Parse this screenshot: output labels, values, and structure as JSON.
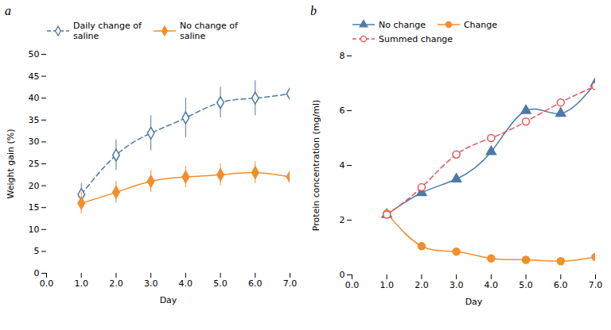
{
  "chart_data": [
    {
      "type": "line",
      "title": "a",
      "xlabel": "Day",
      "ylabel": "Weight gain (%)",
      "x": [
        1,
        2,
        3,
        4,
        5,
        6,
        7
      ],
      "xlim": [
        0,
        7
      ],
      "xticks": [
        0,
        1,
        2,
        3,
        4,
        5,
        6,
        7
      ],
      "ylim": [
        0,
        50
      ],
      "yticks": [
        0,
        5,
        10,
        15,
        20,
        25,
        30,
        35,
        40,
        45,
        50
      ],
      "series": [
        {
          "name": "Daily change of\nsaline",
          "values": [
            18,
            27,
            32,
            35.5,
            39,
            40,
            41
          ],
          "yerr": [
            2.5,
            3.5,
            4.0,
            4.5,
            3.5,
            4.0,
            4.5
          ],
          "marker": "diamond-open",
          "line_style": "dashed"
        },
        {
          "name": "No change of\nsaline",
          "values": [
            16,
            18.5,
            21,
            22,
            22.5,
            23,
            22
          ],
          "yerr": [
            2.5,
            2.5,
            2.5,
            2.5,
            2.5,
            2.5,
            3.0
          ],
          "marker": "diamond",
          "line_style": "solid"
        }
      ]
    },
    {
      "type": "line",
      "title": "b",
      "xlabel": "Day",
      "ylabel": "Protein concentration (mg/ml)",
      "x": [
        1,
        2,
        3,
        4,
        5,
        6,
        7
      ],
      "xlim": [
        0,
        7
      ],
      "xticks": [
        0,
        1,
        2,
        3,
        4,
        5,
        6,
        7
      ],
      "ylim": [
        0,
        8
      ],
      "yticks": [
        0,
        2,
        4,
        6,
        8
      ],
      "series": [
        {
          "name": "No change",
          "values": [
            2.2,
            3.0,
            3.5,
            4.5,
            6.0,
            5.9,
            7.0
          ],
          "marker": "triangle",
          "line_style": "solid"
        },
        {
          "name": "Change",
          "values": [
            2.25,
            1.05,
            0.85,
            0.6,
            0.55,
            0.5,
            0.65
          ],
          "marker": "circle",
          "line_style": "solid"
        },
        {
          "name": "Summed change",
          "values": [
            2.2,
            3.2,
            4.4,
            5.0,
            5.6,
            6.3,
            6.9
          ],
          "marker": "circle-open",
          "line_style": "dashed"
        }
      ]
    }
  ]
}
